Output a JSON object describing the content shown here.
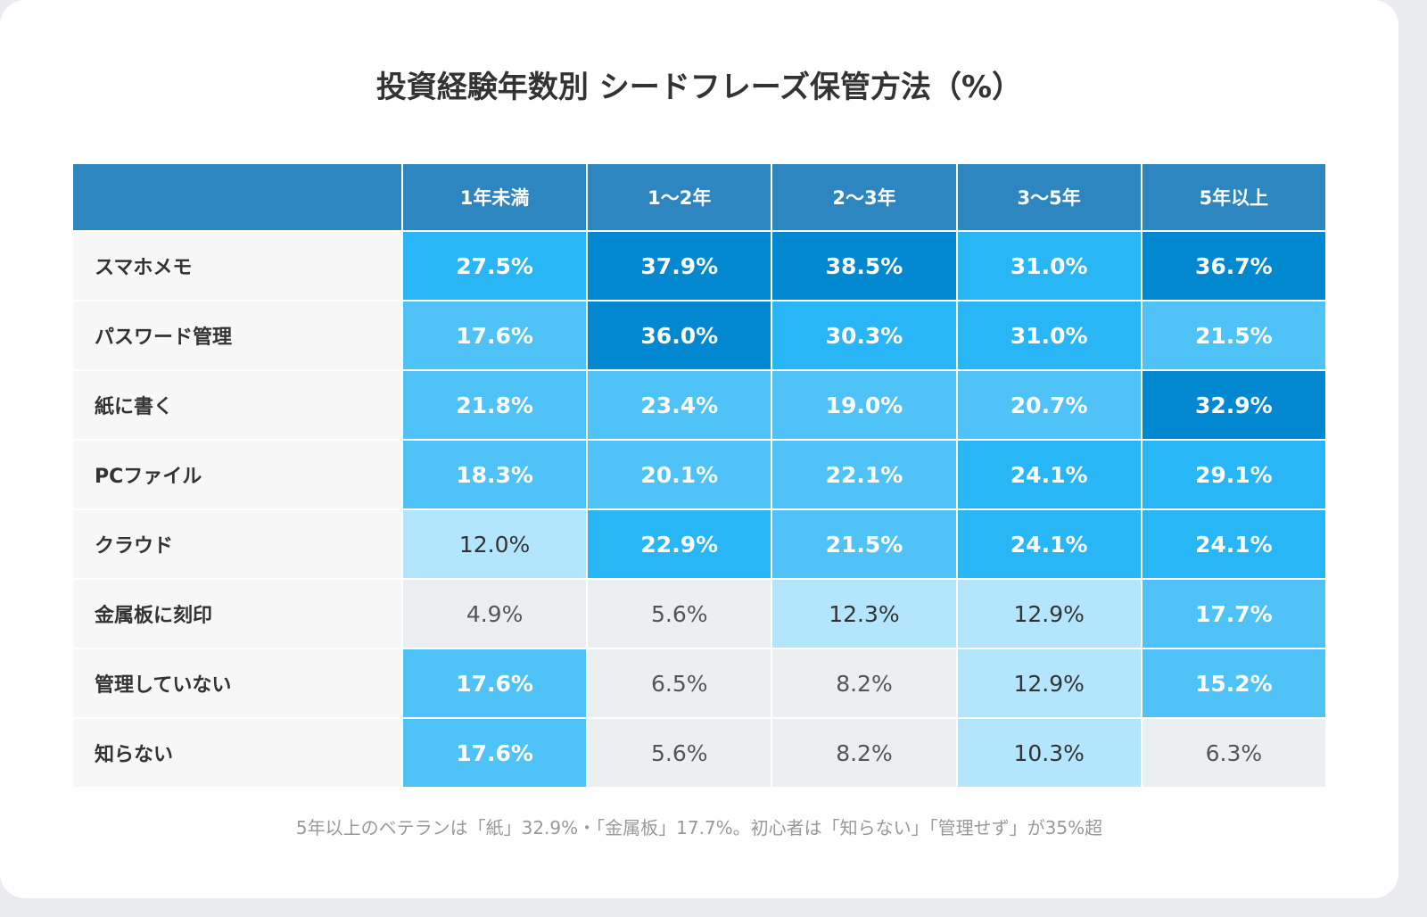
{
  "title": "投資経験年数別 シードフレーズ保管方法（%）",
  "table": {
    "columns": [
      "1年未満",
      "1〜2年",
      "2〜3年",
      "3〜5年",
      "5年以上"
    ],
    "rows": [
      {
        "label": "スマホメモ",
        "values": [
          27.5,
          37.9,
          38.5,
          31.0,
          36.7
        ],
        "value_labels": [
          "27.5%",
          "37.9%",
          "38.5%",
          "31.0%",
          "36.7%"
        ],
        "colors": [
          "#29b6f6",
          "#0288d1",
          "#0288d1",
          "#29b6f6",
          "#0288d1"
        ]
      },
      {
        "label": "パスワード管理",
        "values": [
          17.6,
          36.0,
          30.3,
          31.0,
          21.5
        ],
        "value_labels": [
          "17.6%",
          "36.0%",
          "30.3%",
          "31.0%",
          "21.5%"
        ],
        "colors": [
          "#4fc3f7",
          "#0288d1",
          "#29b6f6",
          "#29b6f6",
          "#4fc3f7"
        ]
      },
      {
        "label": "紙に書く",
        "values": [
          21.8,
          23.4,
          19.0,
          20.7,
          32.9
        ],
        "value_labels": [
          "21.8%",
          "23.4%",
          "19.0%",
          "20.7%",
          "32.9%"
        ],
        "colors": [
          "#4fc3f7",
          "#4fc3f7",
          "#4fc3f7",
          "#4fc3f7",
          "#0288d1"
        ]
      },
      {
        "label": "PCファイル",
        "values": [
          18.3,
          20.1,
          22.1,
          24.1,
          29.1
        ],
        "value_labels": [
          "18.3%",
          "20.1%",
          "22.1%",
          "24.1%",
          "29.1%"
        ],
        "colors": [
          "#4fc3f7",
          "#4fc3f7",
          "#4fc3f7",
          "#29b6f6",
          "#29b6f6"
        ]
      },
      {
        "label": "クラウド",
        "values": [
          12.0,
          22.9,
          21.5,
          24.1,
          24.1
        ],
        "value_labels": [
          "12.0%",
          "22.9%",
          "21.5%",
          "24.1%",
          "24.1%"
        ],
        "colors": [
          "#b3e5fc",
          "#29b6f6",
          "#4fc3f7",
          "#29b6f6",
          "#29b6f6"
        ]
      },
      {
        "label": "金属板に刻印",
        "values": [
          4.9,
          5.6,
          12.3,
          12.9,
          17.7
        ],
        "value_labels": [
          "4.9%",
          "5.6%",
          "12.3%",
          "12.9%",
          "17.7%"
        ],
        "colors": [
          "#eceff1",
          "#eceff1",
          "#b3e5fc",
          "#b3e5fc",
          "#4fc3f7"
        ]
      },
      {
        "label": "管理していない",
        "values": [
          17.6,
          6.5,
          8.2,
          12.9,
          15.2
        ],
        "value_labels": [
          "17.6%",
          "6.5%",
          "8.2%",
          "12.9%",
          "15.2%"
        ],
        "colors": [
          "#4fc3f7",
          "#eceff1",
          "#eceff1",
          "#b3e5fc",
          "#4fc3f7"
        ]
      },
      {
        "label": "知らない",
        "values": [
          17.6,
          5.6,
          8.2,
          10.3,
          6.3
        ],
        "value_labels": [
          "17.6%",
          "5.6%",
          "8.2%",
          "10.3%",
          "6.3%"
        ],
        "colors": [
          "#4fc3f7",
          "#eceff1",
          "#eceff1",
          "#b3e5fc",
          "#eceff1"
        ]
      }
    ]
  },
  "footnote": "5年以上のベテランは「紙」32.9%・「金属板」17.7%。初心者は「知らない」「管理せず」が35%超"
}
